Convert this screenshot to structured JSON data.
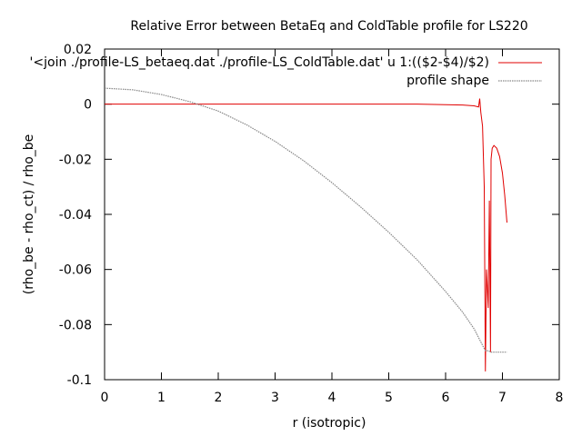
{
  "chart_data": {
    "type": "line",
    "title": "Relative Error between BetaEq and ColdTable profile for LS220",
    "xlabel": "r (isotropic)",
    "ylabel": "(rho_be - rho_ct) / rho_be",
    "xlim": [
      0,
      8
    ],
    "ylim": [
      -0.1,
      0.02
    ],
    "xticks": [
      "0",
      "1",
      "2",
      "3",
      "4",
      "5",
      "6",
      "7",
      "8"
    ],
    "yticks": [
      "0.02",
      "0",
      "-0.02",
      "-0.04",
      "-0.06",
      "-0.08",
      "-0.1"
    ],
    "grid": false,
    "legend_position": "top-right",
    "series": [
      {
        "name": "'<join ./profile-LS_betaeq.dat ./profile-LS_ColdTable.dat' u 1:(($2-$4)/$2)",
        "color": "#e00000",
        "style": "solid",
        "x": [
          0,
          1,
          2,
          2.5,
          3,
          3.5,
          4,
          4.5,
          5,
          5.5,
          6,
          6.3,
          6.5,
          6.58,
          6.6,
          6.62,
          6.65,
          6.68,
          6.7,
          6.72,
          6.75,
          6.77,
          6.79,
          6.8,
          6.82,
          6.85,
          6.9,
          6.95,
          7.0,
          7.04,
          7.08
        ],
        "y": [
          0,
          0,
          0,
          0,
          0,
          0,
          0,
          0,
          0,
          0,
          -0.0002,
          -0.0003,
          -0.0006,
          -0.001,
          0.002,
          -0.003,
          -0.008,
          -0.03,
          -0.097,
          -0.06,
          -0.074,
          -0.035,
          -0.09,
          -0.02,
          -0.016,
          -0.015,
          -0.016,
          -0.019,
          -0.025,
          -0.033,
          -0.043
        ]
      },
      {
        "name": "profile shape",
        "color": "#888888",
        "style": "dotted",
        "x": [
          0,
          0.5,
          1,
          1.5,
          2,
          2.5,
          3,
          3.5,
          4,
          4.5,
          5,
          5.5,
          6,
          6.3,
          6.5,
          6.6,
          6.7,
          6.75,
          6.8,
          7.0,
          7.08
        ],
        "y": [
          0.0058,
          0.0052,
          0.0035,
          0.0009,
          -0.0025,
          -0.0075,
          -0.0135,
          -0.0205,
          -0.0285,
          -0.0372,
          -0.0465,
          -0.0565,
          -0.068,
          -0.0755,
          -0.0815,
          -0.0855,
          -0.0895,
          -0.0895,
          -0.09,
          -0.09,
          -0.09
        ]
      }
    ]
  }
}
